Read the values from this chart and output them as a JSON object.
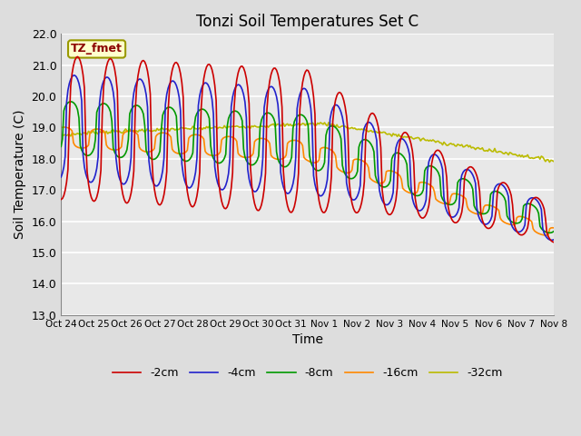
{
  "title": "Tonzi Soil Temperatures Set C",
  "xlabel": "Time",
  "ylabel": "Soil Temperature (C)",
  "ylim": [
    13.0,
    22.0
  ],
  "yticks": [
    13.0,
    14.0,
    15.0,
    16.0,
    17.0,
    18.0,
    19.0,
    20.0,
    21.0,
    22.0
  ],
  "xtick_labels": [
    "Oct 24",
    "Oct 25",
    "Oct 26",
    "Oct 27",
    "Oct 28",
    "Oct 29",
    "Oct 30",
    "Oct 31",
    "Nov 1",
    "Nov 2",
    "Nov 3",
    "Nov 4",
    "Nov 5",
    "Nov 6",
    "Nov 7",
    "Nov 8"
  ],
  "legend_labels": [
    "-2cm",
    "-4cm",
    "-8cm",
    "-16cm",
    "-32cm"
  ],
  "legend_colors": [
    "#cc0000",
    "#2222cc",
    "#009900",
    "#ff8800",
    "#bbbb00"
  ],
  "annotation_text": "TZ_fmet",
  "bg_color": "#dddddd",
  "plot_bg_color": "#e8e8e8",
  "grid_color": "#ffffff",
  "line_width": 1.2
}
